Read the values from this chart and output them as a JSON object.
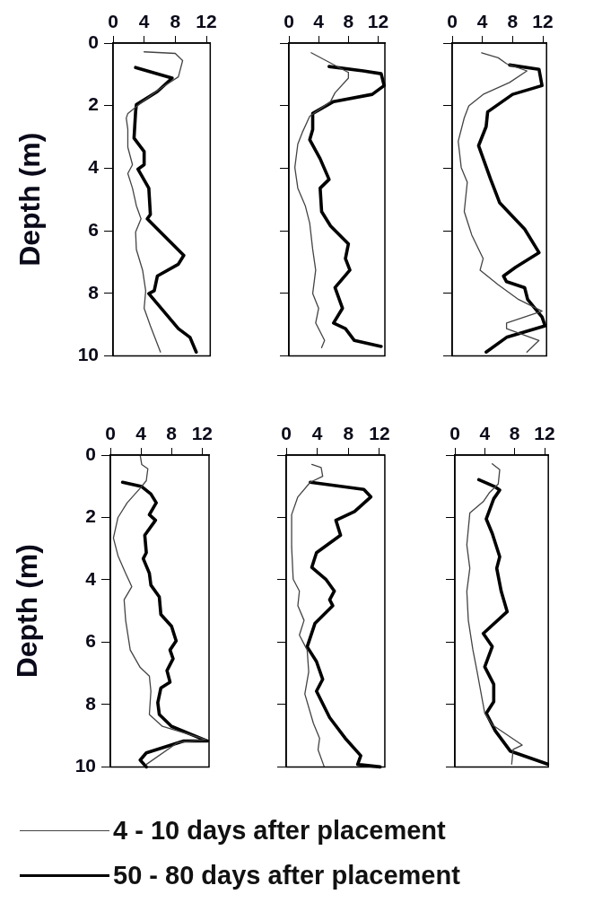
{
  "chart_data": [
    {
      "type": "line",
      "ylabel": "Depth (m)",
      "xlim": [
        0,
        12.5
      ],
      "xticks": [
        0,
        4,
        8,
        12
      ],
      "ylim": [
        10,
        0
      ],
      "yticks": [
        0,
        2,
        4,
        6,
        8,
        10
      ],
      "marker": "none",
      "grid": false,
      "series": [
        {
          "color": "#444444",
          "x": [
            4,
            8,
            8.95,
            8.4,
            6.1,
            3.8,
            1.9,
            1.7,
            1.9,
            1.9,
            2.5,
            1.9,
            2.5,
            3.0,
            3.6,
            2.9,
            3.0,
            3.8,
            4.2,
            4.0,
            4.8,
            6.1
          ],
          "values": [
            0.28,
            0.33,
            0.56,
            1.08,
            1.45,
            1.87,
            2.25,
            2.4,
            2.76,
            3.33,
            3.89,
            4.17,
            4.64,
            5.2,
            5.62,
            6.04,
            6.6,
            7.26,
            7.92,
            8.48,
            9.04,
            9.88
          ]
        },
        {
          "color": "#000000",
          "x": [
            2.9,
            7.6,
            5.7,
            3.0,
            2.9,
            2.7,
            4.0,
            4.0,
            3.2,
            4.6,
            4.8,
            4.4,
            9.1,
            8.4,
            5.7,
            5.3,
            4.6,
            6.5,
            8.4,
            9.9,
            10.7
          ],
          "values": [
            0.78,
            1.12,
            1.55,
            1.97,
            2.2,
            3.04,
            3.47,
            3.89,
            4.03,
            4.64,
            5.48,
            5.62,
            6.79,
            7.07,
            7.45,
            7.92,
            8.01,
            8.57,
            9.13,
            9.41,
            9.88
          ]
        }
      ]
    },
    {
      "type": "line",
      "xlim": [
        0,
        12.9
      ],
      "xticks": [
        0,
        4,
        8,
        12
      ],
      "ylim": [
        10,
        0
      ],
      "yticks": [
        0,
        2,
        4,
        6,
        8,
        10
      ],
      "marker": "none",
      "grid": false,
      "tick_labels": "x",
      "series": [
        {
          "color": "#444444",
          "x": [
            3.0,
            8.0,
            8.0,
            6.2,
            5.6,
            2.8,
            1.8,
            1.2,
            0.8,
            1.2,
            2.2,
            2.8,
            3.2,
            3.6,
            3.2,
            4.0,
            3.6,
            4.8,
            4.4
          ],
          "values": [
            0.31,
            0.94,
            1.12,
            1.59,
            1.87,
            2.34,
            2.86,
            3.23,
            3.98,
            4.64,
            5.2,
            5.76,
            6.6,
            7.26,
            8.01,
            8.48,
            8.95,
            9.51,
            9.74
          ]
        },
        {
          "color": "#000000",
          "x": [
            5.4,
            10.0,
            12.4,
            12.8,
            11.2,
            6.0,
            3.2,
            3.2,
            2.8,
            4.2,
            5.4,
            4.2,
            4.4,
            5.6,
            8.0,
            7.6,
            8.2,
            6.2,
            7.2,
            6.0,
            7.6,
            8.8,
            12.4
          ],
          "values": [
            0.75,
            0.89,
            0.98,
            1.36,
            1.64,
            1.87,
            2.25,
            2.76,
            3.09,
            3.7,
            4.36,
            4.64,
            5.39,
            5.85,
            6.42,
            6.89,
            7.26,
            7.82,
            8.48,
            8.95,
            9.13,
            9.51,
            9.7
          ]
        }
      ]
    },
    {
      "type": "line",
      "xlim": [
        0,
        12.5
      ],
      "xticks": [
        0,
        4,
        8,
        12
      ],
      "ylim": [
        10,
        0
      ],
      "yticks": [
        0,
        2,
        4,
        6,
        8,
        10
      ],
      "marker": "none",
      "grid": false,
      "tick_labels": "x",
      "series": [
        {
          "color": "#444444",
          "x": [
            3.9,
            6.1,
            7.2,
            9.9,
            7.6,
            4.1,
            2.2,
            1.6,
            0.8,
            1.2,
            2.0,
            1.6,
            2.6,
            4.1,
            3.7,
            6.1,
            8.8,
            11.9,
            7.2,
            7.2,
            11.5,
            9.9
          ],
          "values": [
            0.31,
            0.47,
            0.66,
            0.89,
            1.26,
            1.64,
            2.01,
            2.39,
            3.14,
            3.98,
            4.45,
            5.39,
            6.14,
            6.89,
            7.26,
            7.73,
            8.2,
            8.57,
            8.95,
            9.13,
            9.51,
            9.88
          ]
        },
        {
          "color": "#000000",
          "x": [
            7.6,
            11.5,
            11.9,
            8.0,
            4.7,
            4.5,
            3.5,
            5.1,
            6.3,
            9.6,
            11.5,
            8.4,
            6.8,
            7.2,
            9.6,
            10.0,
            11.9,
            12.3,
            7.2,
            4.5
          ],
          "values": [
            0.7,
            0.84,
            1.36,
            1.64,
            2.2,
            2.67,
            3.28,
            4.36,
            5.11,
            5.95,
            6.7,
            7.17,
            7.45,
            7.63,
            7.82,
            8.2,
            8.76,
            9.04,
            9.41,
            9.88
          ]
        }
      ]
    },
    {
      "type": "line",
      "ylabel": "Depth (m)",
      "xlim": [
        0,
        12.9
      ],
      "xticks": [
        0,
        4,
        8,
        12
      ],
      "ylim": [
        10,
        0
      ],
      "yticks": [
        0,
        2,
        4,
        6,
        8,
        10
      ],
      "marker": "none",
      "grid": false,
      "series": [
        {
          "color": "#444444",
          "x": [
            3.9,
            4.1,
            4.9,
            4.7,
            3.9,
            2.2,
            1.0,
            0.4,
            1.0,
            2.0,
            2.8,
            1.8,
            2.0,
            2.6,
            3.9,
            5.1,
            5.3,
            5.1,
            6.8,
            12.5,
            8.8,
            4.7
          ],
          "values": [
            0,
            0.3,
            0.44,
            0.82,
            1.06,
            1.53,
            2.0,
            2.66,
            3.23,
            3.79,
            4.22,
            4.64,
            5.3,
            6.25,
            6.81,
            7.09,
            7.57,
            8.32,
            8.7,
            9.12,
            9.22,
            9.92
          ]
        },
        {
          "color": "#000000",
          "x": [
            1.6,
            4.1,
            5.3,
            6.0,
            5.1,
            5.9,
            4.5,
            4.7,
            4.3,
            5.1,
            5.3,
            6.4,
            6.6,
            8.0,
            8.6,
            7.8,
            8.2,
            7.4,
            7.8,
            6.6,
            6.2,
            6.4,
            8.0,
            12.7,
            9.6,
            4.7,
            3.9,
            4.7
          ],
          "values": [
            0.87,
            1.01,
            1.25,
            1.53,
            1.91,
            2.09,
            2.57,
            3.13,
            3.32,
            3.79,
            4.17,
            4.55,
            5.11,
            5.49,
            5.96,
            6.25,
            6.53,
            6.91,
            7.28,
            7.47,
            7.94,
            8.32,
            8.7,
            9.17,
            9.17,
            9.55,
            9.78,
            10.0
          ]
        }
      ]
    },
    {
      "type": "line",
      "xlim": [
        0,
        12.7
      ],
      "xticks": [
        0,
        4,
        8,
        12
      ],
      "ylim": [
        10,
        0
      ],
      "yticks": [
        0,
        2,
        4,
        6,
        8,
        10
      ],
      "marker": "none",
      "grid": false,
      "tick_labels": "x",
      "series": [
        {
          "color": "#444444",
          "x": [
            3.3,
            4.5,
            4.7,
            3.1,
            1.5,
            0.7,
            0.7,
            0.9,
            1.7,
            1.5,
            2.3,
            1.7,
            2.7,
            2.9,
            2.4,
            3.5,
            4.3,
            4.1,
            4.9
          ],
          "values": [
            0.3,
            0.4,
            0.68,
            0.87,
            1.34,
            1.91,
            2.94,
            3.98,
            4.36,
            4.83,
            5.3,
            5.77,
            6.25,
            6.95,
            7.66,
            8.6,
            9.08,
            9.45,
            10.0
          ]
        },
        {
          "color": "#000000",
          "x": [
            3.1,
            10.0,
            10.9,
            8.8,
            6.4,
            7.0,
            3.9,
            3.3,
            5.1,
            6.2,
            5.6,
            6.0,
            3.7,
            2.7,
            3.9,
            4.7,
            3.9,
            5.6,
            7.6,
            9.6,
            9.2,
            12.1
          ],
          "values": [
            0.87,
            1.1,
            1.34,
            1.81,
            2.09,
            2.57,
            3.13,
            3.6,
            3.98,
            4.36,
            4.64,
            4.83,
            5.4,
            6.15,
            6.62,
            7.19,
            7.57,
            8.42,
            9.08,
            9.64,
            9.92,
            10.0
          ]
        }
      ]
    },
    {
      "type": "line",
      "xlim": [
        0,
        12.5
      ],
      "xticks": [
        0,
        4,
        8,
        12
      ],
      "ylim": [
        10,
        0
      ],
      "yticks": [
        0,
        2,
        4,
        6,
        8,
        10
      ],
      "marker": "none",
      "grid": false,
      "tick_labels": "x",
      "legend": "bottom",
      "series": [
        {
          "name": "4 - 10 days after placement",
          "color": "#444444",
          "x": [
            5.0,
            6.0,
            5.8,
            4.6,
            3.8,
            2.0,
            1.6,
            2.0,
            1.6,
            1.8,
            2.4,
            3.0,
            4.0,
            5.0,
            9.0,
            7.8,
            7.6
          ],
          "values": [
            0.28,
            0.47,
            0.93,
            1.21,
            1.49,
            1.86,
            2.88,
            3.63,
            4.37,
            5.3,
            6.23,
            6.98,
            8.28,
            8.65,
            9.3,
            9.44,
            9.91
          ]
        },
        {
          "name": "50 - 80 days after placement",
          "color": "#000000",
          "x": [
            3.2,
            5.4,
            6.0,
            5.2,
            4.2,
            5.0,
            6.0,
            5.6,
            6.2,
            7.0,
            3.8,
            5.0,
            4.0,
            5.2,
            5.2,
            4.2,
            5.4,
            7.4,
            12.4
          ],
          "values": [
            0.79,
            1.02,
            1.12,
            1.4,
            2.05,
            2.51,
            3.26,
            3.63,
            4.37,
            5.02,
            5.72,
            6.14,
            6.79,
            7.35,
            7.91,
            8.28,
            8.84,
            9.49,
            9.91
          ]
        }
      ]
    }
  ]
}
